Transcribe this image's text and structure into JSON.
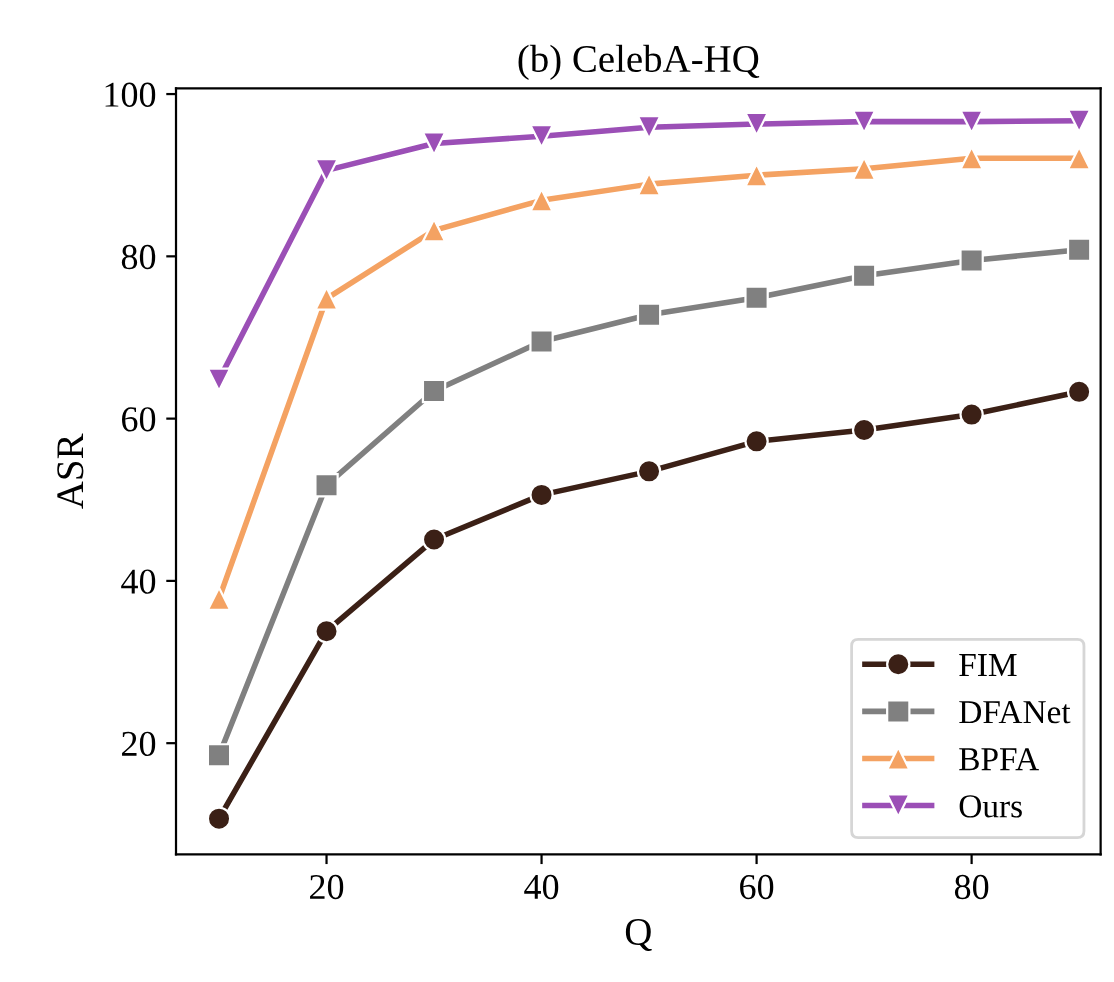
{
  "chart_data": {
    "type": "line",
    "title": "(b) CelebA-HQ",
    "xlabel": "Q",
    "ylabel": "ASR",
    "x": [
      10,
      20,
      30,
      40,
      50,
      60,
      70,
      80,
      90
    ],
    "series": [
      {
        "name": "FIM",
        "color": "#3b2016",
        "marker": "circle",
        "values": [
          10.7,
          33.8,
          45.1,
          50.6,
          53.5,
          57.2,
          58.6,
          60.5,
          63.3
        ]
      },
      {
        "name": "DFANet",
        "color": "#808080",
        "marker": "square",
        "values": [
          18.5,
          51.8,
          63.4,
          69.5,
          72.8,
          74.9,
          77.6,
          79.5,
          80.8
        ]
      },
      {
        "name": "BPFA",
        "color": "#f4a262",
        "marker": "triangle",
        "values": [
          37.8,
          74.8,
          83.2,
          86.9,
          88.9,
          90.0,
          90.8,
          92.1,
          92.1
        ]
      },
      {
        "name": "Ours",
        "color": "#9b4fb6",
        "marker": "triangle_down",
        "values": [
          64.8,
          90.6,
          93.9,
          94.8,
          95.9,
          96.3,
          96.6,
          96.6,
          96.7
        ]
      }
    ],
    "xlim": [
      6,
      92
    ],
    "ylim": [
      6.3,
      100.7
    ],
    "xticks": [
      20,
      40,
      60,
      80
    ],
    "yticks": [
      20,
      40,
      60,
      80,
      100
    ],
    "grid": false,
    "legend": "bottom right",
    "line_style": "solid"
  }
}
